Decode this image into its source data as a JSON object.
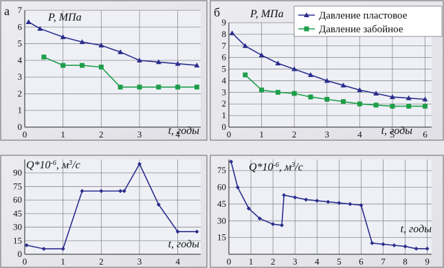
{
  "charts": [
    {
      "panel": "а",
      "type": "line",
      "ylabel": "P, МПа",
      "xlabel": "t, годы",
      "xlim": [
        0,
        4.6
      ],
      "ylim": [
        0,
        7
      ],
      "xticks": [
        0,
        1,
        2,
        3,
        4
      ],
      "yticks": [
        0,
        1,
        2,
        3,
        4,
        5,
        6,
        7
      ],
      "series": [
        {
          "key": "reservoir",
          "color": "#2a2c8c",
          "marker": "triangle",
          "x": [
            0.1,
            0.4,
            1.0,
            1.5,
            2.0,
            2.5,
            3.0,
            3.5,
            4.0,
            4.5
          ],
          "y": [
            6.3,
            5.9,
            5.4,
            5.1,
            4.9,
            4.5,
            4.0,
            3.9,
            3.8,
            3.7
          ]
        },
        {
          "key": "bottomhole",
          "color": "#1e9e4a",
          "marker": "square",
          "x": [
            0.5,
            1.0,
            1.5,
            2.0,
            2.5,
            3.0,
            3.5,
            4.0,
            4.5
          ],
          "y": [
            4.2,
            3.7,
            3.7,
            3.6,
            2.4,
            2.4,
            2.4,
            2.4,
            2.4
          ]
        }
      ]
    },
    {
      "panel": "б",
      "type": "line",
      "ylabel": "P, МПа",
      "xlabel": "t, годы",
      "xlim": [
        0,
        6.2
      ],
      "ylim": [
        0,
        9
      ],
      "xticks": [
        0,
        1,
        2,
        3,
        4,
        5,
        6
      ],
      "yticks": [
        0,
        1,
        2,
        3,
        4,
        5,
        6,
        7,
        8,
        9
      ],
      "legend": [
        "Давление  пластовое",
        "Давление  забойное"
      ],
      "legend_position": "top-right",
      "series": [
        {
          "key": "reservoir",
          "name": "Давление  пластовое",
          "color": "#2a2c8c",
          "marker": "triangle",
          "x": [
            0.1,
            0.5,
            1.0,
            1.5,
            2.0,
            2.5,
            3.0,
            3.5,
            4.0,
            4.5,
            5.0,
            5.5,
            6.0
          ],
          "y": [
            8.1,
            7.0,
            6.2,
            5.5,
            5.0,
            4.5,
            4.0,
            3.6,
            3.2,
            2.9,
            2.6,
            2.5,
            2.4
          ]
        },
        {
          "key": "bottomhole",
          "name": "Давление  забойное",
          "color": "#1e9e4a",
          "marker": "square",
          "x": [
            0.5,
            1.0,
            1.5,
            2.0,
            2.5,
            3.0,
            3.5,
            4.0,
            4.5,
            5.0,
            5.5,
            6.0
          ],
          "y": [
            4.5,
            3.2,
            3.0,
            2.9,
            2.6,
            2.4,
            2.2,
            2.0,
            1.9,
            1.8,
            1.8,
            1.8
          ]
        }
      ]
    },
    {
      "panel": "",
      "type": "line",
      "ylabel": "Q*10-6, м3/с",
      "xlabel": "t, годы",
      "xlim": [
        0,
        4.6
      ],
      "ylim": [
        0,
        105
      ],
      "xticks": [
        0,
        1,
        2,
        3,
        4
      ],
      "yticks": [
        0,
        15,
        30,
        45,
        60,
        75,
        90
      ],
      "series": [
        {
          "key": "flow",
          "color": "#2a2c8c",
          "marker": "diamond",
          "x": [
            0.05,
            0.5,
            1.0,
            1.5,
            2.0,
            2.5,
            2.6,
            3.0,
            3.5,
            4.0,
            4.5
          ],
          "y": [
            10,
            6,
            6,
            70,
            70,
            70,
            70,
            100,
            55,
            25,
            25
          ]
        }
      ]
    },
    {
      "panel": "",
      "type": "line",
      "ylabel": "Q*10-6, м3/с",
      "xlabel": "t, годы",
      "xlim": [
        0,
        9.2
      ],
      "ylim": [
        0,
        85
      ],
      "xticks": [
        0,
        1,
        2,
        3,
        4,
        5,
        6,
        7,
        8,
        9
      ],
      "yticks": [
        15,
        30,
        45,
        60,
        75
      ],
      "series": [
        {
          "key": "flow",
          "color": "#2a2c8c",
          "marker": "diamond",
          "x": [
            0.1,
            0.4,
            0.9,
            1.4,
            2.0,
            2.4,
            2.5,
            3.0,
            3.5,
            4.0,
            4.5,
            5.0,
            5.5,
            6.0,
            6.5,
            7.0,
            7.5,
            8.0,
            8.5,
            9.0
          ],
          "y": [
            83,
            60,
            41,
            32,
            27,
            26,
            53,
            51,
            49,
            48,
            47,
            46,
            45,
            44,
            10,
            9,
            8,
            7,
            5,
            5
          ]
        }
      ]
    }
  ]
}
